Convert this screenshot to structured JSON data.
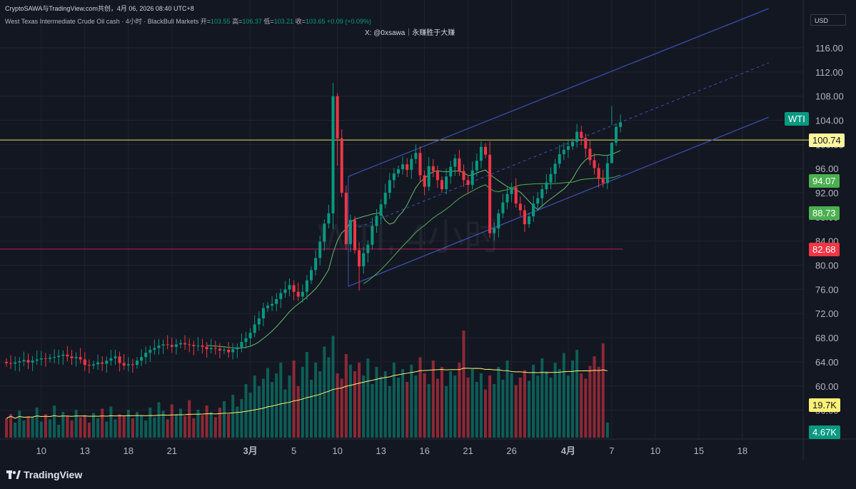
{
  "header": {
    "top_line": "CryptoSAWA与TradingView.com共创，4月 06, 2026 08:40 UTC+8",
    "symbol_line": "West Texas Intermediate Crude Oil cash · 4小时 · BlackBull Markets",
    "ohlc": [
      {
        "label": "开",
        "value": "103.55"
      },
      {
        "label": "高",
        "value": "106.37"
      },
      {
        "label": "低",
        "value": "103.21"
      },
      {
        "label": "收",
        "value": "103.65"
      }
    ],
    "change": "+0.09 (+0.09%)",
    "credit": "X: @0xsawa｜永赚胜于大赚",
    "watermark": "WTI, 4小时"
  },
  "currency": "USD",
  "price_tags": [
    {
      "value": "WTI",
      "bg": "#089981",
      "fg": "#ffffff",
      "price": 104.3
    },
    {
      "value": "100.74",
      "bg": "#fff59d",
      "fg": "#131722",
      "price": 100.74
    },
    {
      "value": "94.07",
      "bg": "#4caf50",
      "fg": "#ffffff",
      "price": 94.07
    },
    {
      "value": "88.73",
      "bg": "#4caf50",
      "fg": "#ffffff",
      "price": 88.73
    },
    {
      "value": "82.68",
      "bg": "#f23645",
      "fg": "#ffffff",
      "price": 82.68
    }
  ],
  "volume_tags": [
    {
      "value": "19.7K",
      "bg": "#fff176",
      "fg": "#131722"
    },
    {
      "value": "4.67K",
      "bg": "#089981",
      "fg": "#ffffff"
    }
  ],
  "chart_data": {
    "type": "candlestick",
    "y_axis": {
      "min": 56,
      "max": 116,
      "ticks": [
        116,
        112,
        108,
        104,
        100,
        96,
        92,
        88,
        84,
        80,
        76,
        72,
        68,
        64,
        60,
        56
      ]
    },
    "x_ticks": [
      {
        "label": "10",
        "idx": 8
      },
      {
        "label": "13",
        "idx": 18
      },
      {
        "label": "18",
        "idx": 28
      },
      {
        "label": "21",
        "idx": 38
      },
      {
        "label": "3月",
        "idx": 56,
        "bold": true
      },
      {
        "label": "5",
        "idx": 66
      },
      {
        "label": "10",
        "idx": 76
      },
      {
        "label": "13",
        "idx": 86
      },
      {
        "label": "16",
        "idx": 96
      },
      {
        "label": "21",
        "idx": 106
      },
      {
        "label": "26",
        "idx": 116
      },
      {
        "label": "4月",
        "idx": 129,
        "bold": true
      },
      {
        "label": "7",
        "idx": 139
      },
      {
        "label": "10",
        "idx": 149
      },
      {
        "label": "15",
        "idx": 159
      },
      {
        "label": "18",
        "idx": 169
      }
    ],
    "horizontal_levels": [
      {
        "price": 100.74,
        "color": "#e8e35a"
      },
      {
        "price": 82.68,
        "color": "#c2185b"
      }
    ],
    "candles_close": [
      63.8,
      63.7,
      63.9,
      64.1,
      64.3,
      63.9,
      64.2,
      64.4,
      64.6,
      64.5,
      64.7,
      64.8,
      65.0,
      65.2,
      64.9,
      64.6,
      64.8,
      64.4,
      63.5,
      63.4,
      63.6,
      63.9,
      63.7,
      64.2,
      64.6,
      64.9,
      63.8,
      63.4,
      63.6,
      63.5,
      64.2,
      64.8,
      65.5,
      66.0,
      66.3,
      66.7,
      66.9,
      66.8,
      66.5,
      66.9,
      67.1,
      66.9,
      66.8,
      66.6,
      66.7,
      66.5,
      66.1,
      66.3,
      66.2,
      65.9,
      66.0,
      65.6,
      66.1,
      66.4,
      67.3,
      67.9,
      68.8,
      70.2,
      71.2,
      72.9,
      73.3,
      73.6,
      74.4,
      75.4,
      76.0,
      76.7,
      75.6,
      74.8,
      75.6,
      77.5,
      79.2,
      81.2,
      83.9,
      86.9,
      88.6,
      108.0,
      101.0,
      92.0,
      83.5,
      87.5,
      82.5,
      79.8,
      82.0,
      83.4,
      86.5,
      88.2,
      90.1,
      92.0,
      94.1,
      95.2,
      95.9,
      96.7,
      95.8,
      97.6,
      98.6,
      94.9,
      93.0,
      96.4,
      95.6,
      94.1,
      92.6,
      94.7,
      96.3,
      97.7,
      95.6,
      94.1,
      93.3,
      95.7,
      97.3,
      99.6,
      98.3,
      85.3,
      86.1,
      88.6,
      90.4,
      91.8,
      92.9,
      90.2,
      89.1,
      86.8,
      88.1,
      90.2,
      91.1,
      92.6,
      93.7,
      95.1,
      96.8,
      98.4,
      99.1,
      99.7,
      100.4,
      102.1,
      101.1,
      99.3,
      97.4,
      96.1,
      94.3,
      93.6,
      96.9,
      100.3,
      102.9,
      103.65
    ],
    "ma_fast_start": 46,
    "ma_slow_start": 82,
    "channel": {
      "upper": [
        {
          "idx": 78.5,
          "price": 94.7
        },
        {
          "idx": 175,
          "price": 122.5
        }
      ],
      "lower": [
        {
          "idx": 78.5,
          "price": 76.5
        },
        {
          "idx": 175,
          "price": 104.5
        }
      ],
      "mid": [
        {
          "idx": 78.5,
          "price": 85.6
        },
        {
          "idx": 175,
          "price": 113.5
        }
      ]
    },
    "volume": [
      18,
      22,
      14,
      25,
      16,
      20,
      19,
      28,
      15,
      22,
      17,
      30,
      12,
      24,
      20,
      16,
      26,
      19,
      21,
      14,
      23,
      18,
      27,
      15,
      29,
      17,
      22,
      20,
      26,
      18,
      24,
      21,
      16,
      28,
      19,
      33,
      25,
      17,
      31,
      22,
      27,
      20,
      35,
      18,
      26,
      21,
      30,
      24,
      19,
      28,
      34,
      22,
      40,
      29,
      36,
      50,
      42,
      58,
      48,
      55,
      65,
      52,
      60,
      70,
      45,
      58,
      72,
      48,
      66,
      80,
      54,
      70,
      62,
      85,
      75,
      95,
      60,
      55,
      78,
      68,
      62,
      70,
      58,
      74,
      50,
      66,
      57,
      62,
      48,
      70,
      56,
      64,
      52,
      68,
      58,
      75,
      60,
      50,
      72,
      55,
      66,
      48,
      62,
      58,
      70,
      100,
      56,
      64,
      52,
      60,
      45,
      58,
      50,
      66,
      54,
      72,
      60,
      49,
      56,
      63,
      53,
      68,
      58,
      74,
      62,
      56,
      70,
      64,
      79,
      58,
      72,
      82,
      60,
      55,
      67,
      76,
      66,
      88,
      14
    ]
  }
}
